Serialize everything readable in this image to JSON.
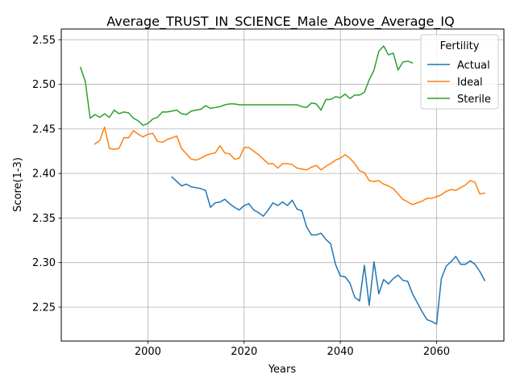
{
  "chart_data": {
    "type": "line",
    "title": "Average_TRUST_IN_SCIENCE_Male_Above_Average_IQ",
    "xlabel": "Years",
    "ylabel": "Score(1-3)",
    "xlim": [
      1982,
      2074
    ],
    "ylim": [
      2.212,
      2.562
    ],
    "xticks": [
      2000,
      2020,
      2040,
      2060
    ],
    "yticks": [
      2.25,
      2.3,
      2.35,
      2.4,
      2.45,
      2.5,
      2.55
    ],
    "ytick_labels": [
      "2.25",
      "2.30",
      "2.35",
      "2.40",
      "2.45",
      "2.50",
      "2.55"
    ],
    "grid": true,
    "legend": {
      "title": "Fertility",
      "position": "top-right"
    },
    "series": [
      {
        "name": "Actual",
        "color": "#1f77b4",
        "x": [
          2005,
          2006,
          2007,
          2008,
          2009,
          2010,
          2011,
          2012,
          2013,
          2014,
          2015,
          2016,
          2017,
          2018,
          2019,
          2020,
          2021,
          2022,
          2023,
          2024,
          2025,
          2026,
          2027,
          2028,
          2029,
          2030,
          2031,
          2032,
          2033,
          2034,
          2035,
          2036,
          2037,
          2038,
          2039,
          2040,
          2041,
          2042,
          2043,
          2044,
          2045,
          2046,
          2047,
          2048,
          2049,
          2050,
          2051,
          2052,
          2053,
          2054,
          2055,
          2056,
          2057,
          2058,
          2059,
          2060,
          2061,
          2062,
          2063,
          2064,
          2065,
          2066,
          2067,
          2068,
          2069,
          2070
        ],
        "y": [
          2.396,
          2.391,
          2.386,
          2.388,
          2.385,
          2.384,
          2.383,
          2.381,
          2.362,
          2.367,
          2.368,
          2.371,
          2.366,
          2.362,
          2.359,
          2.364,
          2.366,
          2.359,
          2.356,
          2.352,
          2.359,
          2.367,
          2.364,
          2.368,
          2.364,
          2.37,
          2.36,
          2.358,
          2.34,
          2.331,
          2.331,
          2.333,
          2.326,
          2.321,
          2.298,
          2.285,
          2.284,
          2.277,
          2.261,
          2.257,
          2.297,
          2.252,
          2.301,
          2.265,
          2.281,
          2.276,
          2.282,
          2.286,
          2.28,
          2.279,
          2.265,
          2.255,
          2.245,
          2.236,
          2.234,
          2.231,
          2.282,
          2.296,
          2.301,
          2.307,
          2.298,
          2.298,
          2.302,
          2.298,
          2.29,
          2.28
        ]
      },
      {
        "name": "Ideal",
        "color": "#ff7f0e",
        "x": [
          1989,
          1990,
          1991,
          1992,
          1993,
          1994,
          1995,
          1996,
          1997,
          1998,
          1999,
          2000,
          2001,
          2002,
          2003,
          2004,
          2005,
          2006,
          2007,
          2008,
          2009,
          2010,
          2011,
          2012,
          2013,
          2014,
          2015,
          2016,
          2017,
          2018,
          2019,
          2020,
          2021,
          2022,
          2023,
          2024,
          2025,
          2026,
          2027,
          2028,
          2029,
          2030,
          2031,
          2032,
          2033,
          2034,
          2035,
          2036,
          2037,
          2038,
          2039,
          2040,
          2041,
          2042,
          2043,
          2044,
          2045,
          2046,
          2047,
          2048,
          2049,
          2050,
          2051,
          2052,
          2053,
          2054,
          2055,
          2056,
          2057,
          2058,
          2059,
          2060,
          2061,
          2062,
          2063,
          2064,
          2065,
          2066,
          2067,
          2068,
          2069,
          2070
        ],
        "y": [
          2.433,
          2.437,
          2.452,
          2.428,
          2.427,
          2.428,
          2.44,
          2.44,
          2.448,
          2.444,
          2.441,
          2.444,
          2.445,
          2.436,
          2.435,
          2.438,
          2.44,
          2.442,
          2.428,
          2.422,
          2.416,
          2.415,
          2.417,
          2.42,
          2.422,
          2.423,
          2.431,
          2.423,
          2.422,
          2.416,
          2.417,
          2.429,
          2.429,
          2.425,
          2.421,
          2.416,
          2.411,
          2.411,
          2.406,
          2.411,
          2.411,
          2.41,
          2.406,
          2.405,
          2.404,
          2.407,
          2.409,
          2.404,
          2.408,
          2.411,
          2.415,
          2.417,
          2.421,
          2.417,
          2.411,
          2.403,
          2.401,
          2.392,
          2.391,
          2.392,
          2.388,
          2.386,
          2.383,
          2.377,
          2.371,
          2.368,
          2.365,
          2.367,
          2.369,
          2.372,
          2.372,
          2.374,
          2.376,
          2.38,
          2.382,
          2.381,
          2.384,
          2.387,
          2.392,
          2.39,
          2.377,
          2.378
        ]
      },
      {
        "name": "Sterile",
        "color": "#2ca02c",
        "x": [
          1986,
          1987,
          1988,
          1989,
          1990,
          1991,
          1992,
          1993,
          1994,
          1995,
          1996,
          1997,
          1998,
          1999,
          2000,
          2001,
          2002,
          2003,
          2004,
          2005,
          2006,
          2007,
          2008,
          2009,
          2010,
          2011,
          2012,
          2013,
          2014,
          2015,
          2016,
          2017,
          2018,
          2019,
          2020,
          2021,
          2022,
          2023,
          2024,
          2025,
          2026,
          2027,
          2028,
          2029,
          2030,
          2031,
          2032,
          2033,
          2034,
          2035,
          2036,
          2037,
          2038,
          2039,
          2040,
          2041,
          2042,
          2043,
          2044,
          2045,
          2046,
          2047,
          2048,
          2049,
          2050,
          2051,
          2052,
          2053,
          2054,
          2055
        ],
        "y": [
          2.519,
          2.503,
          2.462,
          2.466,
          2.463,
          2.467,
          2.463,
          2.471,
          2.467,
          2.469,
          2.468,
          2.462,
          2.459,
          2.454,
          2.456,
          2.461,
          2.463,
          2.469,
          2.469,
          2.47,
          2.471,
          2.467,
          2.466,
          2.47,
          2.471,
          2.472,
          2.476,
          2.473,
          2.474,
          2.475,
          2.477,
          2.478,
          2.478,
          2.477,
          2.477,
          2.477,
          2.477,
          2.477,
          2.477,
          2.477,
          2.477,
          2.477,
          2.477,
          2.477,
          2.477,
          2.477,
          2.475,
          2.474,
          2.479,
          2.478,
          2.471,
          2.483,
          2.483,
          2.486,
          2.485,
          2.489,
          2.484,
          2.488,
          2.488,
          2.491,
          2.505,
          2.516,
          2.537,
          2.543,
          2.533,
          2.535,
          2.516,
          2.525,
          2.526,
          2.524
        ]
      }
    ]
  }
}
